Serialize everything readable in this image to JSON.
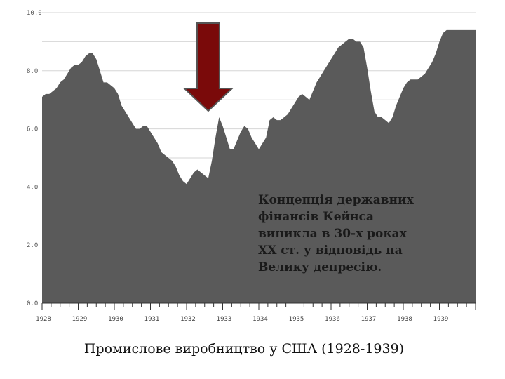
{
  "chart_data": {
    "type": "area",
    "title": "",
    "xlabel": "",
    "ylabel": "",
    "caption": "Промислове виробництво у США (1928-1939)",
    "annotation_lines": [
      "Концепція державних",
      "фінансів Кейнса",
      "виникла в 30-х роках",
      "XX ст. у відповідь на",
      "Велику депресію."
    ],
    "y_ticks": [
      "10.0",
      "8.0",
      "6.0",
      "4.0",
      "2.0",
      "0.0"
    ],
    "y_tick_values": [
      10,
      8,
      6,
      4,
      2,
      0
    ],
    "x_ticks": [
      "1928",
      "1929",
      "1930",
      "1931",
      "1932",
      "1933",
      "1934",
      "1935",
      "1936",
      "1937",
      "1938",
      "1939"
    ],
    "x_tick_values": [
      1928,
      1929,
      1930,
      1931,
      1932,
      1933,
      1934,
      1935,
      1936,
      1937,
      1938,
      1939
    ],
    "xlim": [
      1928,
      1940
    ],
    "ylim": [
      0,
      10
    ],
    "grid": true,
    "legend": "none",
    "fill_color": "#5a5a5a",
    "arrow_color": "#7a0a0a",
    "arrow_points_to": 1932.6,
    "series": [
      {
        "x": [
          1928.0,
          1928.1,
          1928.2,
          1928.3,
          1928.4,
          1928.5,
          1928.6,
          1928.7,
          1928.8,
          1928.9,
          1929.0,
          1929.1,
          1929.2,
          1929.3,
          1929.4,
          1929.5,
          1929.6,
          1929.7,
          1929.8,
          1929.9,
          1930.0,
          1930.1,
          1930.2,
          1930.3,
          1930.4,
          1930.5,
          1930.6,
          1930.7,
          1930.8,
          1930.9,
          1931.0,
          1931.1,
          1931.2,
          1931.3,
          1931.4,
          1931.5,
          1931.6,
          1931.7,
          1931.8,
          1931.9,
          1932.0,
          1932.1,
          1932.2,
          1932.3,
          1932.4,
          1932.5,
          1932.6,
          1932.7,
          1932.8,
          1932.9,
          1933.0,
          1933.1,
          1933.2,
          1933.3,
          1933.4,
          1933.5,
          1933.6,
          1933.7,
          1933.8,
          1933.9,
          1934.0,
          1934.1,
          1934.2,
          1934.3,
          1934.4,
          1934.5,
          1934.6,
          1934.7,
          1934.8,
          1934.9,
          1935.0,
          1935.1,
          1935.2,
          1935.3,
          1935.4,
          1935.5,
          1935.6,
          1935.7,
          1935.8,
          1935.9,
          1936.0,
          1936.1,
          1936.2,
          1936.3,
          1936.4,
          1936.5,
          1936.6,
          1936.7,
          1936.8,
          1936.9,
          1937.0,
          1937.1,
          1937.2,
          1937.3,
          1937.4,
          1937.5,
          1937.6,
          1937.7,
          1937.8,
          1937.9,
          1938.0,
          1938.1,
          1938.2,
          1938.3,
          1938.4,
          1938.5,
          1938.6,
          1938.7,
          1938.8,
          1938.9,
          1939.0,
          1939.1,
          1939.2,
          1939.3,
          1939.4,
          1939.5,
          1939.6,
          1939.7,
          1939.8,
          1939.9,
          1940.0
        ],
        "values": [
          7.1,
          7.2,
          7.2,
          7.3,
          7.4,
          7.6,
          7.7,
          7.9,
          8.1,
          8.2,
          8.2,
          8.3,
          8.5,
          8.6,
          8.6,
          8.4,
          8.0,
          7.6,
          7.6,
          7.5,
          7.4,
          7.2,
          6.8,
          6.6,
          6.4,
          6.2,
          6.0,
          6.0,
          6.1,
          6.1,
          5.9,
          5.7,
          5.5,
          5.2,
          5.1,
          5.0,
          4.9,
          4.7,
          4.4,
          4.2,
          4.1,
          4.3,
          4.5,
          4.6,
          4.5,
          4.4,
          4.3,
          4.9,
          5.7,
          6.4,
          6.1,
          5.7,
          5.3,
          5.3,
          5.6,
          5.9,
          6.1,
          6.0,
          5.7,
          5.5,
          5.3,
          5.5,
          5.7,
          6.3,
          6.4,
          6.3,
          6.3,
          6.4,
          6.5,
          6.7,
          6.9,
          7.1,
          7.2,
          7.1,
          7.0,
          7.3,
          7.6,
          7.8,
          8.0,
          8.2,
          8.4,
          8.6,
          8.8,
          8.9,
          9.0,
          9.1,
          9.1,
          9.0,
          9.0,
          8.8,
          8.1,
          7.3,
          6.6,
          6.4,
          6.4,
          6.3,
          6.2,
          6.4,
          6.8,
          7.1,
          7.4,
          7.6,
          7.7,
          7.7,
          7.7,
          7.8,
          7.9,
          8.1,
          8.3,
          8.6,
          9.0,
          9.3,
          9.4,
          9.4,
          9.4,
          9.4,
          9.4,
          9.4,
          9.4,
          9.4,
          9.4
        ]
      }
    ]
  }
}
